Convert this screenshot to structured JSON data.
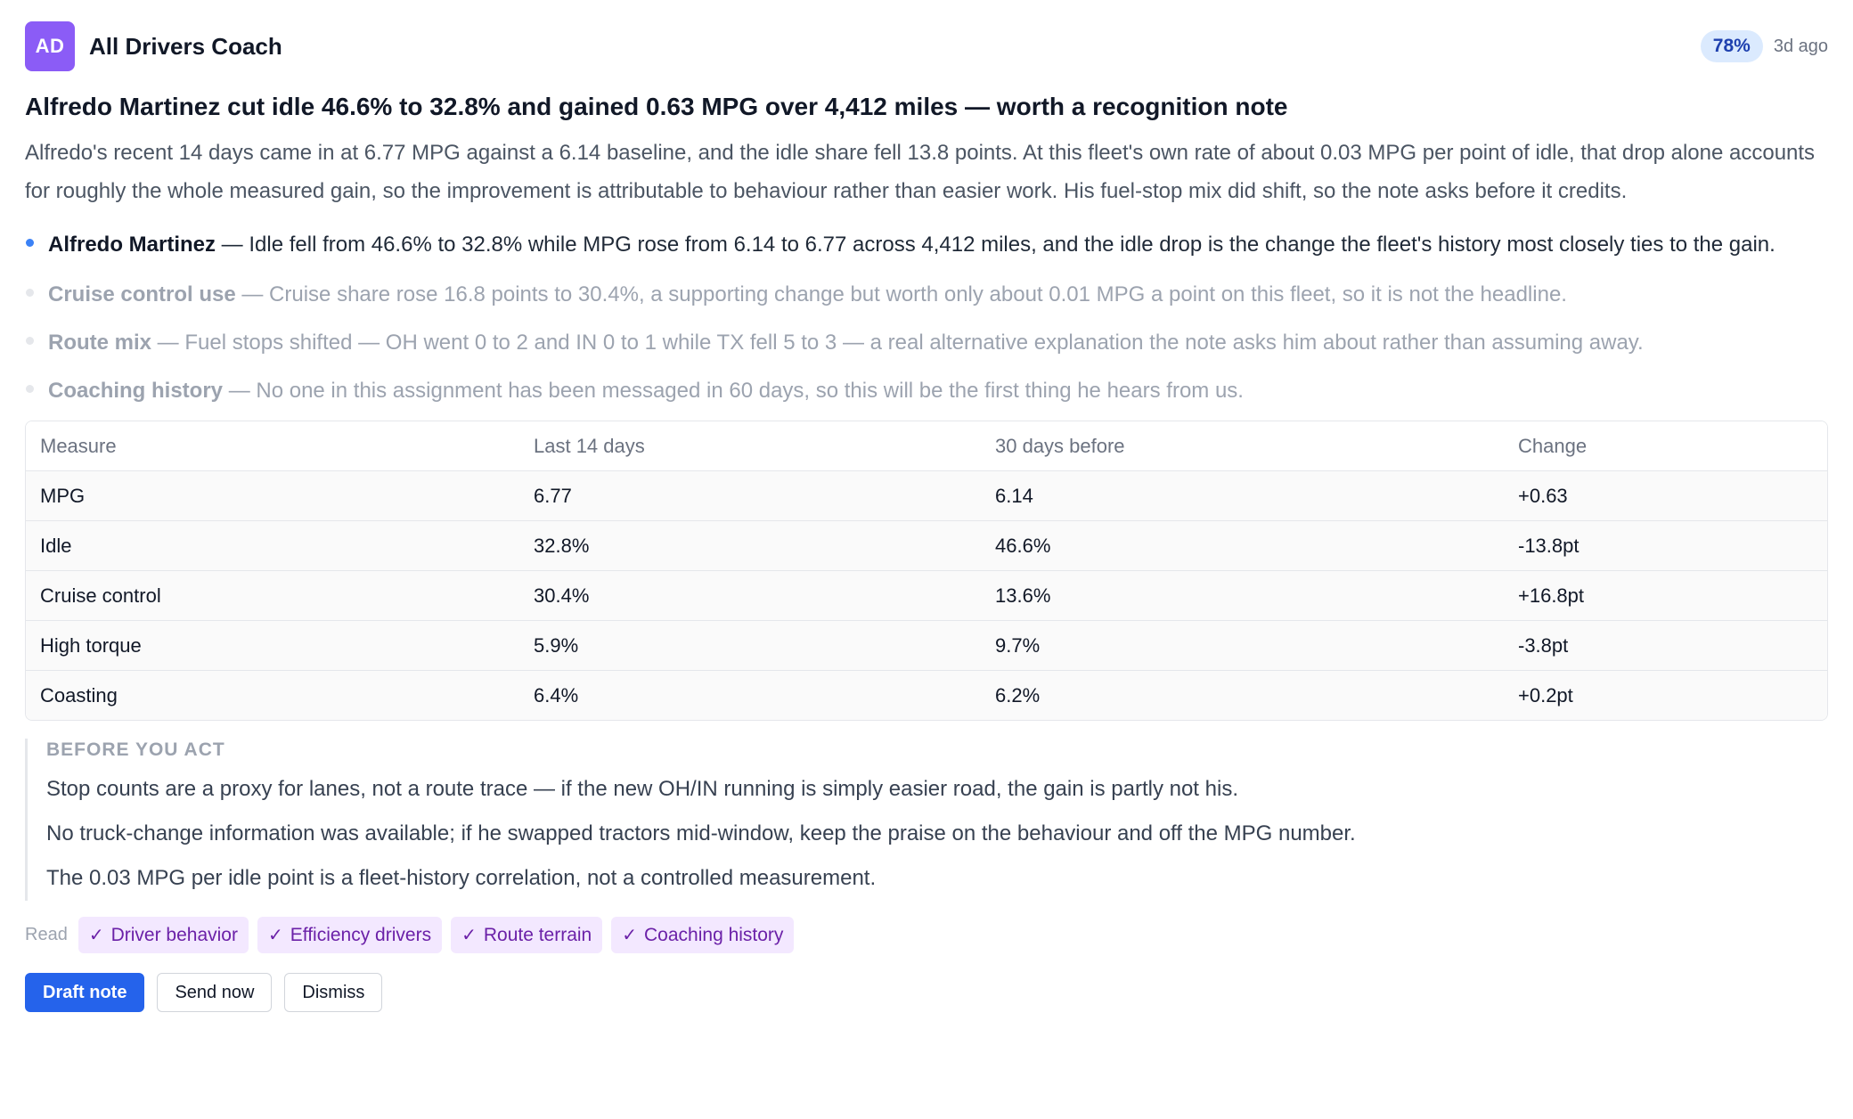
{
  "header": {
    "avatar_initials": "AD",
    "coach_name": "All Drivers Coach",
    "confidence": "78%",
    "time_ago": "3d ago"
  },
  "insight": {
    "title": "Alfredo Martinez cut idle 46.6% to 32.8% and gained 0.63 MPG over 4,412 miles — worth a recognition note",
    "summary": "Alfredo's recent 14 days came in at 6.77 MPG against a 6.14 baseline, and the idle share fell 13.8 points. At this fleet's own rate of about 0.03 MPG per point of idle, that drop alone accounts for roughly the whole measured gain, so the improvement is attributable to behaviour rather than easier work. His fuel-stop mix did shift, so the note asks before it credits."
  },
  "bullets": [
    {
      "label": "Alfredo Martinez",
      "text": " — Idle fell from 46.6% to 32.8% while MPG rose from 6.14 to 6.77 across 4,412 miles, and the idle drop is the change the fleet's history most closely ties to the gain."
    },
    {
      "label": "Cruise control use",
      "text": " — Cruise share rose 16.8 points to 30.4%, a supporting change but worth only about 0.01 MPG a point on this fleet, so it is not the headline."
    },
    {
      "label": "Route mix",
      "text": " — Fuel stops shifted — OH went 0 to 2 and IN 0 to 1 while TX fell 5 to 3 — a real alternative explanation the note asks him about rather than assuming away."
    },
    {
      "label": "Coaching history",
      "text": " — No one in this assignment has been messaged in 60 days, so this will be the first thing he hears from us."
    }
  ],
  "table": {
    "headers": [
      "Measure",
      "Last 14 days",
      "30 days before",
      "Change"
    ],
    "rows": [
      [
        "MPG",
        "6.77",
        "6.14",
        "+0.63"
      ],
      [
        "Idle",
        "32.8%",
        "46.6%",
        "-13.8pt"
      ],
      [
        "Cruise control",
        "30.4%",
        "13.6%",
        "+16.8pt"
      ],
      [
        "High torque",
        "5.9%",
        "9.7%",
        "-3.8pt"
      ],
      [
        "Coasting",
        "6.4%",
        "6.2%",
        "+0.2pt"
      ]
    ]
  },
  "caveats": {
    "title": "BEFORE YOU ACT",
    "items": [
      "Stop counts are a proxy for lanes, not a route trace — if the new OH/IN running is simply easier road, the gain is partly not his.",
      "No truck-change information was available; if he swapped tractors mid-window, keep the praise on the behaviour and off the MPG number.",
      "The 0.03 MPG per idle point is a fleet-history correlation, not a controlled measurement."
    ]
  },
  "read": {
    "label": "Read",
    "tags": [
      "Driver behavior",
      "Efficiency drivers",
      "Route terrain",
      "Coaching history"
    ]
  },
  "actions": {
    "draft_label": "Draft note",
    "send_label": "Send now",
    "dismiss_label": "Dismiss"
  },
  "colors": {
    "avatar": "#8b5cf6",
    "primary_button": "#2563eb",
    "tag_bg": "#f3e8ff",
    "tag_text": "#6b21a8",
    "confidence_bg": "#dbeafe"
  },
  "icons": {
    "tag_check": "check-icon",
    "bullet": "bullet-dot-icon"
  }
}
